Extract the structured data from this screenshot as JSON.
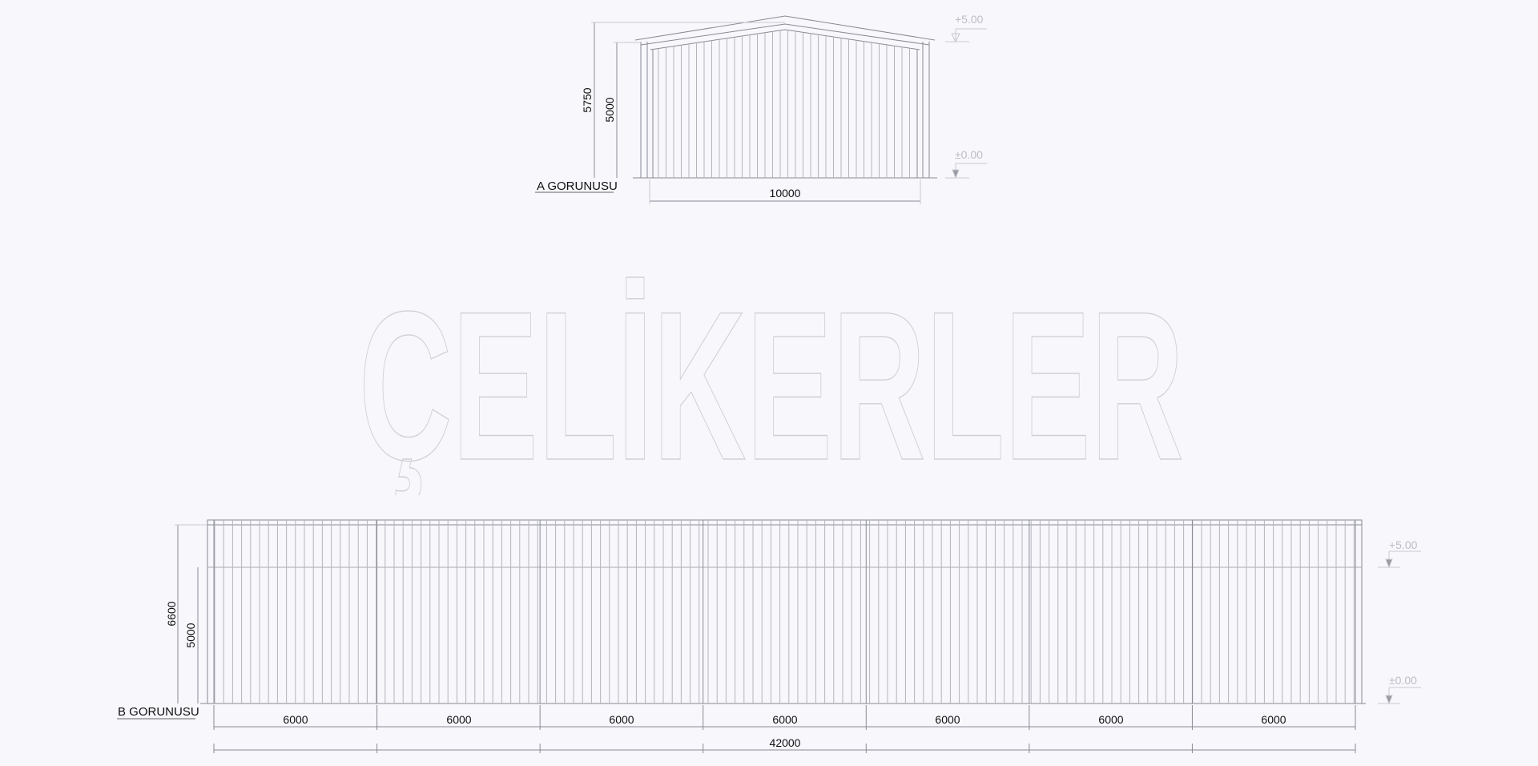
{
  "brand": {
    "text": "ÇELİKERLER"
  },
  "view_a": {
    "title": "A GORUNUSU",
    "dim_total_height": "5750",
    "dim_wall_height": "5000",
    "dim_width": "10000",
    "level_top": "+5.00",
    "level_bottom": "±0.00"
  },
  "view_b": {
    "title": "B GORUNUSU",
    "dim_total_height": "6600",
    "dim_wall_height": "5000",
    "bays": [
      "6000",
      "6000",
      "6000",
      "6000",
      "6000",
      "6000",
      "6000"
    ],
    "dim_total_length": "42000",
    "level_top": "+5.00",
    "level_bottom": "±0.00"
  },
  "colors": {
    "line": "#8a8a94",
    "faint": "#c8c8d0",
    "text": "#111111",
    "background": "#f7f7fc"
  }
}
